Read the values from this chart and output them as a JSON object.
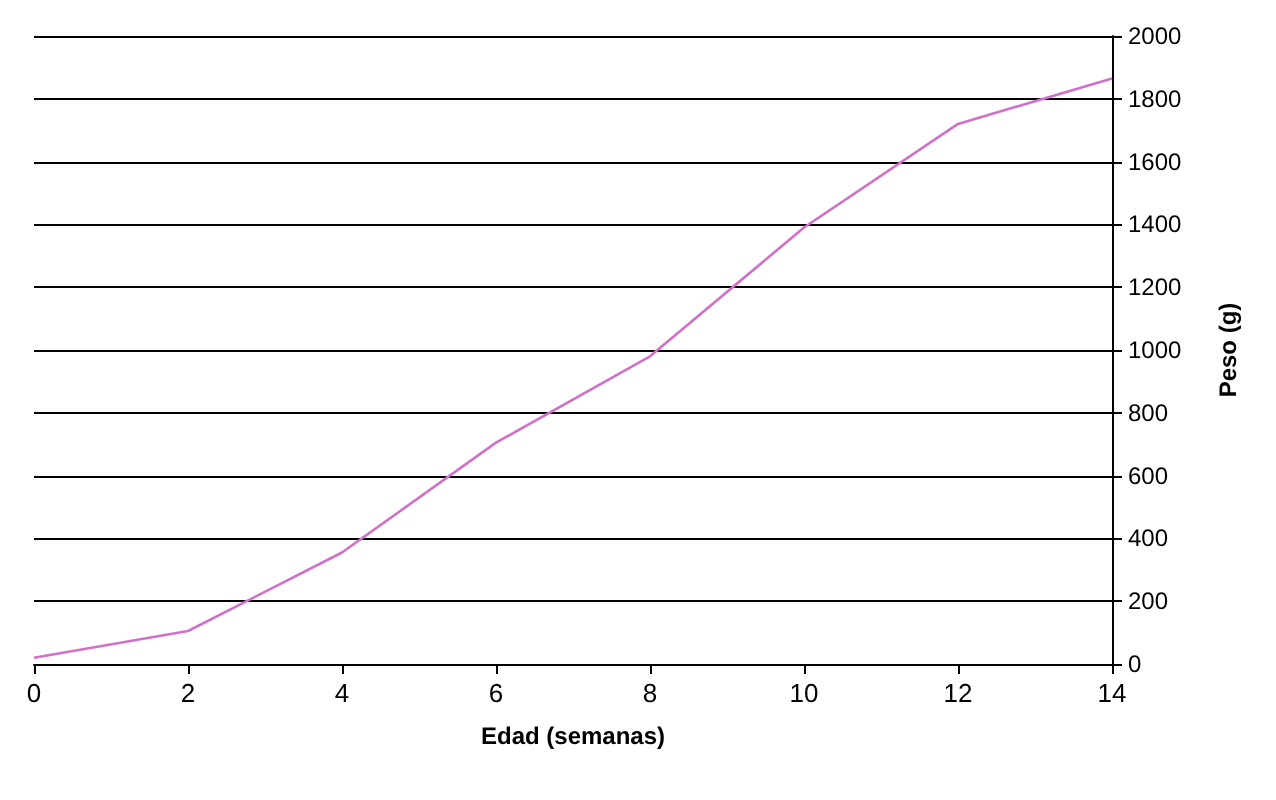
{
  "chart_data": {
    "type": "line",
    "xlabel": "Edad (semanas)",
    "ylabel": "Peso (g)",
    "x": [
      0,
      2,
      4,
      6,
      8,
      10,
      12,
      14
    ],
    "series": [
      {
        "color": "#d070c8",
        "values": [
          20,
          105,
          355,
          705,
          980,
          1390,
          1720,
          1865
        ]
      }
    ],
    "xlim": [
      0,
      14
    ],
    "xticks": [
      0,
      2,
      4,
      6,
      8,
      10,
      12,
      14
    ],
    "ylim": [
      0,
      2000
    ],
    "yticks": [
      0,
      200,
      400,
      600,
      800,
      1000,
      1200,
      1400,
      1600,
      1800,
      2000
    ],
    "grid": "y",
    "marker": "none",
    "line_style": "solid"
  }
}
